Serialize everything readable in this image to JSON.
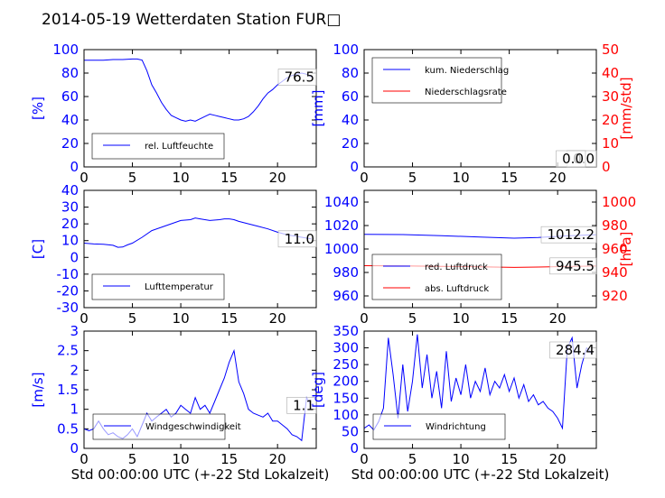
{
  "title": "2014-05-19 Wetterdaten Station FUR□",
  "colors": {
    "left_axis": "#0000ff",
    "right_axis": "#ff0000",
    "line_blue": "#0000ff",
    "line_red": "#ff0000"
  },
  "chart_data": [
    {
      "type": "line",
      "panel": "top-left",
      "ylabel": "[%]",
      "xlim": [
        0,
        24
      ],
      "ylim": [
        0,
        100
      ],
      "xticks": [
        0,
        5,
        10,
        15,
        20
      ],
      "yticks": [
        0,
        20,
        40,
        60,
        80,
        100
      ],
      "legend_placement": "lower-left",
      "last_value_label": "76.5",
      "series": [
        {
          "name": "rel. Luftfeuchte",
          "color": "#0000ff",
          "x": [
            0,
            1,
            2,
            3,
            4,
            5,
            5.5,
            6,
            6.5,
            7,
            7.5,
            8,
            8.5,
            9,
            9.5,
            10,
            10.5,
            11,
            11.5,
            12,
            12.5,
            13,
            13.5,
            14,
            14.5,
            15,
            15.5,
            16,
            16.5,
            17,
            17.5,
            18,
            18.5,
            19,
            19.5,
            20,
            20.5,
            21,
            21.5,
            22,
            22.5,
            23,
            23.5
          ],
          "y": [
            91,
            91,
            91,
            91.5,
            91.5,
            92,
            92,
            91,
            82,
            70,
            63,
            55,
            49,
            44,
            42,
            40,
            39,
            40,
            39,
            41,
            43,
            45,
            44,
            43,
            42,
            41,
            40,
            40,
            41,
            43,
            47,
            52,
            58,
            63,
            66,
            70,
            73,
            76,
            78,
            79,
            80,
            79,
            76.5
          ]
        }
      ]
    },
    {
      "type": "line",
      "panel": "top-right",
      "ylabel": "[mm]",
      "y2label": "[mm/std]",
      "xlim": [
        0,
        24
      ],
      "ylim": [
        0,
        100
      ],
      "y2lim": [
        0,
        50
      ],
      "xticks": [
        0,
        5,
        10,
        15,
        20
      ],
      "yticks": [
        0,
        20,
        40,
        60,
        80,
        100
      ],
      "y2ticks": [
        0,
        10,
        20,
        30,
        40,
        50
      ],
      "legend_placement": "upper-left",
      "last_value_label": "0.0",
      "last_value_label_2": "0.0",
      "series": [
        {
          "name": "kum. Niederschlag",
          "color": "#0000ff",
          "x": [
            0,
            24
          ],
          "y": [
            0,
            0
          ]
        },
        {
          "name": "Niederschlagsrate",
          "color": "#ff0000",
          "axis": "right",
          "x": [
            0,
            24
          ],
          "y": [
            0,
            0
          ]
        }
      ]
    },
    {
      "type": "line",
      "panel": "middle-left",
      "ylabel": "[C]",
      "xlim": [
        0,
        24
      ],
      "ylim": [
        -30,
        40
      ],
      "xticks": [
        0,
        5,
        10,
        15,
        20
      ],
      "yticks": [
        -30,
        -20,
        -10,
        0,
        10,
        20,
        30,
        40
      ],
      "legend_placement": "lower-left",
      "last_value_label": "11.0",
      "series": [
        {
          "name": "Lufttemperatur",
          "color": "#0000ff",
          "x": [
            0,
            1,
            2,
            3,
            3.5,
            4,
            4.5,
            5,
            6,
            7,
            8,
            9,
            10,
            11,
            11.5,
            12,
            13,
            14,
            14.5,
            15,
            15.5,
            16,
            17,
            18,
            19,
            20,
            21,
            22,
            23,
            23.5
          ],
          "y": [
            8.5,
            8,
            7.8,
            7.2,
            6,
            6.2,
            7.5,
            8.5,
            12,
            16,
            18,
            20,
            22,
            22.5,
            23.5,
            23,
            22,
            22.5,
            23,
            23,
            22.5,
            21.5,
            20,
            18.5,
            17,
            15,
            13.5,
            12.5,
            11.5,
            11
          ]
        }
      ]
    },
    {
      "type": "line",
      "panel": "middle-right",
      "y2label": "[hPa]",
      "xlim": [
        0,
        24
      ],
      "ylim": [
        950,
        1050
      ],
      "y2lim": [
        910,
        1010
      ],
      "xticks": [
        0,
        5,
        10,
        15,
        20
      ],
      "yticks": [
        960,
        980,
        1000,
        1020,
        1040
      ],
      "y2ticks": [
        920,
        940,
        960,
        980,
        1000
      ],
      "legend_placement": "lower-left",
      "last_value_label": "1012.2",
      "last_value_label_2": "945.5",
      "series": [
        {
          "name": "red. Luftdruck",
          "color": "#0000ff",
          "x": [
            0,
            4,
            8,
            12,
            15.5,
            18,
            21,
            24
          ],
          "y": [
            1012.5,
            1012.3,
            1011.3,
            1010.2,
            1009.2,
            1009.8,
            1011.2,
            1012.2
          ]
        },
        {
          "name": "abs. Luftdruck",
          "color": "#ff0000",
          "axis": "right",
          "x": [
            0,
            4,
            8,
            12,
            15.5,
            18,
            21,
            24
          ],
          "y": [
            945.8,
            945.6,
            945.2,
            944.8,
            944.3,
            944.6,
            945.1,
            945.5
          ]
        }
      ]
    },
    {
      "type": "line",
      "panel": "bottom-left",
      "ylabel": "[m/s]",
      "xlabel": "Std 00:00:00 UTC (+-22 Std Lokalzeit)",
      "xlim": [
        0,
        24
      ],
      "ylim": [
        0,
        3
      ],
      "xticks": [
        0,
        5,
        10,
        15,
        20
      ],
      "yticks": [
        0.0,
        0.5,
        1.0,
        1.5,
        2.0,
        2.5,
        3.0
      ],
      "legend_placement": "lower-center",
      "last_value_label": "1.1",
      "series": [
        {
          "name": "Windgeschwindigkeit",
          "color": "#0000ff",
          "x": [
            0,
            0.5,
            1,
            1.5,
            2,
            2.5,
            3,
            3.5,
            4,
            4.5,
            5,
            5.5,
            6,
            6.5,
            7,
            7.5,
            8,
            8.5,
            9,
            9.5,
            10,
            10.5,
            11,
            11.5,
            12,
            12.5,
            13,
            13.5,
            14,
            14.5,
            15,
            15.5,
            16,
            16.5,
            17,
            17.5,
            18,
            18.5,
            19,
            19.5,
            20,
            20.5,
            21,
            21.5,
            22,
            22.5,
            23,
            23.5
          ],
          "y": [
            0.5,
            0.45,
            0.5,
            0.7,
            0.5,
            0.35,
            0.4,
            0.3,
            0.25,
            0.35,
            0.5,
            0.3,
            0.6,
            0.9,
            0.7,
            0.8,
            0.9,
            1.0,
            0.8,
            0.9,
            1.1,
            1.0,
            0.9,
            1.3,
            1.0,
            1.1,
            0.9,
            1.2,
            1.5,
            1.8,
            2.2,
            2.5,
            1.7,
            1.4,
            1.0,
            0.9,
            0.85,
            0.8,
            0.9,
            0.7,
            0.7,
            0.6,
            0.5,
            0.35,
            0.3,
            0.2,
            1.3,
            1.1
          ]
        }
      ]
    },
    {
      "type": "line",
      "panel": "bottom-right",
      "ylabel": "[deg]",
      "xlabel": "Std 00:00:00 UTC (+-22 Std Lokalzeit)",
      "xlim": [
        0,
        24
      ],
      "ylim": [
        0,
        350
      ],
      "xticks": [
        0,
        5,
        10,
        15,
        20
      ],
      "yticks": [
        0,
        50,
        100,
        150,
        200,
        250,
        300,
        350
      ],
      "legend_placement": "lower-center",
      "last_value_label": "284.4",
      "series": [
        {
          "name": "Windrichtung",
          "color": "#0000ff",
          "x": [
            0,
            0.5,
            1,
            1.5,
            2,
            2.5,
            3,
            3.5,
            4,
            4.5,
            5,
            5.5,
            6,
            6.5,
            7,
            7.5,
            8,
            8.5,
            9,
            9.5,
            10,
            10.5,
            11,
            11.5,
            12,
            12.5,
            13,
            13.5,
            14,
            14.5,
            15,
            15.5,
            16,
            16.5,
            17,
            17.5,
            18,
            18.5,
            19,
            19.5,
            20,
            20.5,
            21,
            21.5,
            22,
            22.5,
            23,
            23.5
          ],
          "y": [
            60,
            70,
            55,
            80,
            120,
            330,
            220,
            90,
            250,
            110,
            200,
            340,
            180,
            280,
            150,
            230,
            120,
            290,
            140,
            210,
            160,
            250,
            150,
            200,
            170,
            240,
            160,
            200,
            180,
            220,
            170,
            210,
            150,
            190,
            140,
            160,
            130,
            140,
            120,
            110,
            90,
            60,
            300,
            330,
            180,
            250,
            300,
            284.4
          ]
        }
      ]
    }
  ]
}
